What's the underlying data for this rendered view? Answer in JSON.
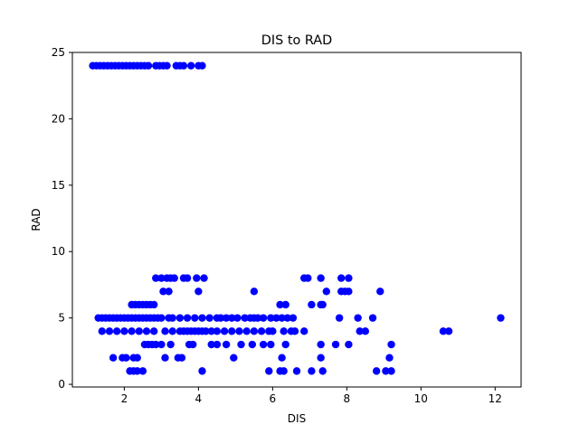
{
  "chart_data": {
    "type": "scatter",
    "title": "DIS to RAD",
    "xlabel": "DIS",
    "ylabel": "RAD",
    "xlim": [
      0.6,
      12.7
    ],
    "ylim": [
      -0.2,
      25.0
    ],
    "xticks": [
      2,
      4,
      6,
      8,
      10,
      12
    ],
    "yticks": [
      0,
      5,
      10,
      15,
      20,
      25
    ],
    "grid": false,
    "marker_color": "#0000ff",
    "series": [
      {
        "points": [
          [
            1.15,
            24
          ],
          [
            1.25,
            24
          ],
          [
            1.35,
            24
          ],
          [
            1.45,
            24
          ],
          [
            1.55,
            24
          ],
          [
            1.65,
            24
          ],
          [
            1.75,
            24
          ],
          [
            1.85,
            24
          ],
          [
            1.95,
            24
          ],
          [
            2.05,
            24
          ],
          [
            2.15,
            24
          ],
          [
            2.25,
            24
          ],
          [
            2.35,
            24
          ],
          [
            2.45,
            24
          ],
          [
            2.55,
            24
          ],
          [
            2.65,
            24
          ],
          [
            2.85,
            24
          ],
          [
            2.95,
            24
          ],
          [
            3.05,
            24
          ],
          [
            3.15,
            24
          ],
          [
            3.4,
            24
          ],
          [
            3.5,
            24
          ],
          [
            3.6,
            24
          ],
          [
            3.8,
            24
          ],
          [
            4.0,
            24
          ],
          [
            4.1,
            24
          ],
          [
            2.85,
            8
          ],
          [
            3.0,
            8
          ],
          [
            3.15,
            8
          ],
          [
            3.25,
            8
          ],
          [
            3.35,
            8
          ],
          [
            3.6,
            8
          ],
          [
            3.7,
            8
          ],
          [
            3.95,
            8
          ],
          [
            4.15,
            8
          ],
          [
            6.85,
            8
          ],
          [
            6.95,
            8
          ],
          [
            7.3,
            8
          ],
          [
            7.85,
            8
          ],
          [
            8.05,
            8
          ],
          [
            3.05,
            7
          ],
          [
            3.2,
            7
          ],
          [
            4.0,
            7
          ],
          [
            5.5,
            7
          ],
          [
            7.45,
            7
          ],
          [
            7.85,
            7
          ],
          [
            7.95,
            7
          ],
          [
            8.05,
            7
          ],
          [
            8.9,
            7
          ],
          [
            2.2,
            6
          ],
          [
            2.3,
            6
          ],
          [
            2.4,
            6
          ],
          [
            2.5,
            6
          ],
          [
            2.6,
            6
          ],
          [
            2.7,
            6
          ],
          [
            2.8,
            6
          ],
          [
            6.2,
            6
          ],
          [
            6.35,
            6
          ],
          [
            7.05,
            6
          ],
          [
            7.3,
            6
          ],
          [
            7.35,
            6
          ],
          [
            1.3,
            5
          ],
          [
            1.4,
            5
          ],
          [
            1.5,
            5
          ],
          [
            1.6,
            5
          ],
          [
            1.7,
            5
          ],
          [
            1.8,
            5
          ],
          [
            1.9,
            5
          ],
          [
            2.0,
            5
          ],
          [
            2.1,
            5
          ],
          [
            2.2,
            5
          ],
          [
            2.3,
            5
          ],
          [
            2.4,
            5
          ],
          [
            2.5,
            5
          ],
          [
            2.6,
            5
          ],
          [
            2.7,
            5
          ],
          [
            2.8,
            5
          ],
          [
            2.9,
            5
          ],
          [
            3.0,
            5
          ],
          [
            3.2,
            5
          ],
          [
            3.3,
            5
          ],
          [
            3.5,
            5
          ],
          [
            3.7,
            5
          ],
          [
            3.9,
            5
          ],
          [
            4.1,
            5
          ],
          [
            4.3,
            5
          ],
          [
            4.5,
            5
          ],
          [
            4.6,
            5
          ],
          [
            4.75,
            5
          ],
          [
            4.9,
            5
          ],
          [
            5.05,
            5
          ],
          [
            5.25,
            5
          ],
          [
            5.4,
            5
          ],
          [
            5.5,
            5
          ],
          [
            5.6,
            5
          ],
          [
            5.75,
            5
          ],
          [
            5.95,
            5
          ],
          [
            6.1,
            5
          ],
          [
            6.25,
            5
          ],
          [
            6.4,
            5
          ],
          [
            6.55,
            5
          ],
          [
            7.8,
            5
          ],
          [
            8.3,
            5
          ],
          [
            8.7,
            5
          ],
          [
            12.15,
            5
          ],
          [
            1.4,
            4
          ],
          [
            1.6,
            4
          ],
          [
            1.8,
            4
          ],
          [
            2.0,
            4
          ],
          [
            2.2,
            4
          ],
          [
            2.4,
            4
          ],
          [
            2.6,
            4
          ],
          [
            2.8,
            4
          ],
          [
            3.1,
            4
          ],
          [
            3.3,
            4
          ],
          [
            3.5,
            4
          ],
          [
            3.6,
            4
          ],
          [
            3.7,
            4
          ],
          [
            3.8,
            4
          ],
          [
            3.9,
            4
          ],
          [
            4.0,
            4
          ],
          [
            4.1,
            4
          ],
          [
            4.2,
            4
          ],
          [
            4.35,
            4
          ],
          [
            4.5,
            4
          ],
          [
            4.7,
            4
          ],
          [
            4.9,
            4
          ],
          [
            5.1,
            4
          ],
          [
            5.3,
            4
          ],
          [
            5.5,
            4
          ],
          [
            5.7,
            4
          ],
          [
            5.9,
            4
          ],
          [
            6.0,
            4
          ],
          [
            6.3,
            4
          ],
          [
            6.5,
            4
          ],
          [
            6.6,
            4
          ],
          [
            6.85,
            4
          ],
          [
            8.35,
            4
          ],
          [
            8.5,
            4
          ],
          [
            10.6,
            4
          ],
          [
            10.75,
            4
          ],
          [
            2.55,
            3
          ],
          [
            2.65,
            3
          ],
          [
            2.75,
            3
          ],
          [
            2.85,
            3
          ],
          [
            3.0,
            3
          ],
          [
            3.25,
            3
          ],
          [
            3.75,
            3
          ],
          [
            3.85,
            3
          ],
          [
            4.35,
            3
          ],
          [
            4.5,
            3
          ],
          [
            4.75,
            3
          ],
          [
            5.15,
            3
          ],
          [
            5.45,
            3
          ],
          [
            5.75,
            3
          ],
          [
            5.95,
            3
          ],
          [
            6.35,
            3
          ],
          [
            7.3,
            3
          ],
          [
            7.7,
            3
          ],
          [
            8.05,
            3
          ],
          [
            9.2,
            3
          ],
          [
            1.7,
            2
          ],
          [
            1.95,
            2
          ],
          [
            2.05,
            2
          ],
          [
            2.25,
            2
          ],
          [
            2.35,
            2
          ],
          [
            3.1,
            2
          ],
          [
            3.45,
            2
          ],
          [
            3.55,
            2
          ],
          [
            4.95,
            2
          ],
          [
            6.25,
            2
          ],
          [
            7.3,
            2
          ],
          [
            9.15,
            2
          ],
          [
            2.15,
            1
          ],
          [
            2.25,
            1
          ],
          [
            2.35,
            1
          ],
          [
            2.5,
            1
          ],
          [
            4.1,
            1
          ],
          [
            5.9,
            1
          ],
          [
            6.2,
            1
          ],
          [
            6.3,
            1
          ],
          [
            6.65,
            1
          ],
          [
            7.05,
            1
          ],
          [
            7.35,
            1
          ],
          [
            8.8,
            1
          ],
          [
            9.05,
            1
          ],
          [
            9.2,
            1
          ]
        ]
      }
    ]
  }
}
